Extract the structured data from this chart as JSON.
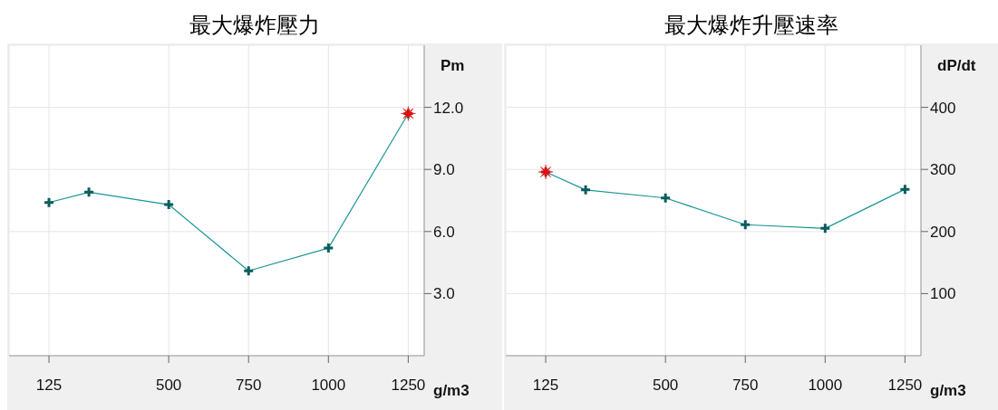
{
  "chart_data": [
    {
      "type": "line",
      "title": "最大爆炸壓力",
      "xlabel": "g/m3",
      "ylabel": "Pm",
      "xlim": [
        0,
        1300
      ],
      "xticks": [
        125,
        500,
        750,
        1000,
        1250
      ],
      "ylim": [
        0,
        15
      ],
      "yticks": [
        {
          "value": 3,
          "label": "3.0"
        },
        {
          "value": 6,
          "label": "6.0"
        },
        {
          "value": 9,
          "label": "9.0"
        },
        {
          "value": 12,
          "label": "12.0"
        }
      ],
      "grid": true,
      "marker": "cross",
      "series": [
        {
          "color": "#1a9696",
          "x": [
            125,
            250,
            500,
            750,
            1000,
            1250
          ],
          "values": [
            7.4,
            7.9,
            7.3,
            4.1,
            5.2,
            11.7
          ]
        },
        {
          "type": "scatter",
          "marker": "star",
          "color": "#ff0000",
          "x": [
            1250
          ],
          "values": [
            11.7
          ]
        }
      ]
    },
    {
      "type": "line",
      "title": "最大爆炸升壓速率",
      "xlabel": "g/m3",
      "ylabel": "dP/dt",
      "xlim": [
        0,
        1300
      ],
      "xticks": [
        125,
        500,
        750,
        1000,
        1250
      ],
      "ylim": [
        0,
        500
      ],
      "yticks": [
        100,
        200,
        300,
        400
      ],
      "grid": true,
      "marker": "cross",
      "series": [
        {
          "color": "#1a9696",
          "x": [
            125,
            250,
            500,
            750,
            1000,
            1250
          ],
          "values": [
            296,
            267,
            254,
            211,
            205,
            268
          ]
        },
        {
          "type": "scatter",
          "marker": "star",
          "color": "#ff0000",
          "x": [
            125
          ],
          "values": [
            296
          ]
        }
      ]
    }
  ]
}
